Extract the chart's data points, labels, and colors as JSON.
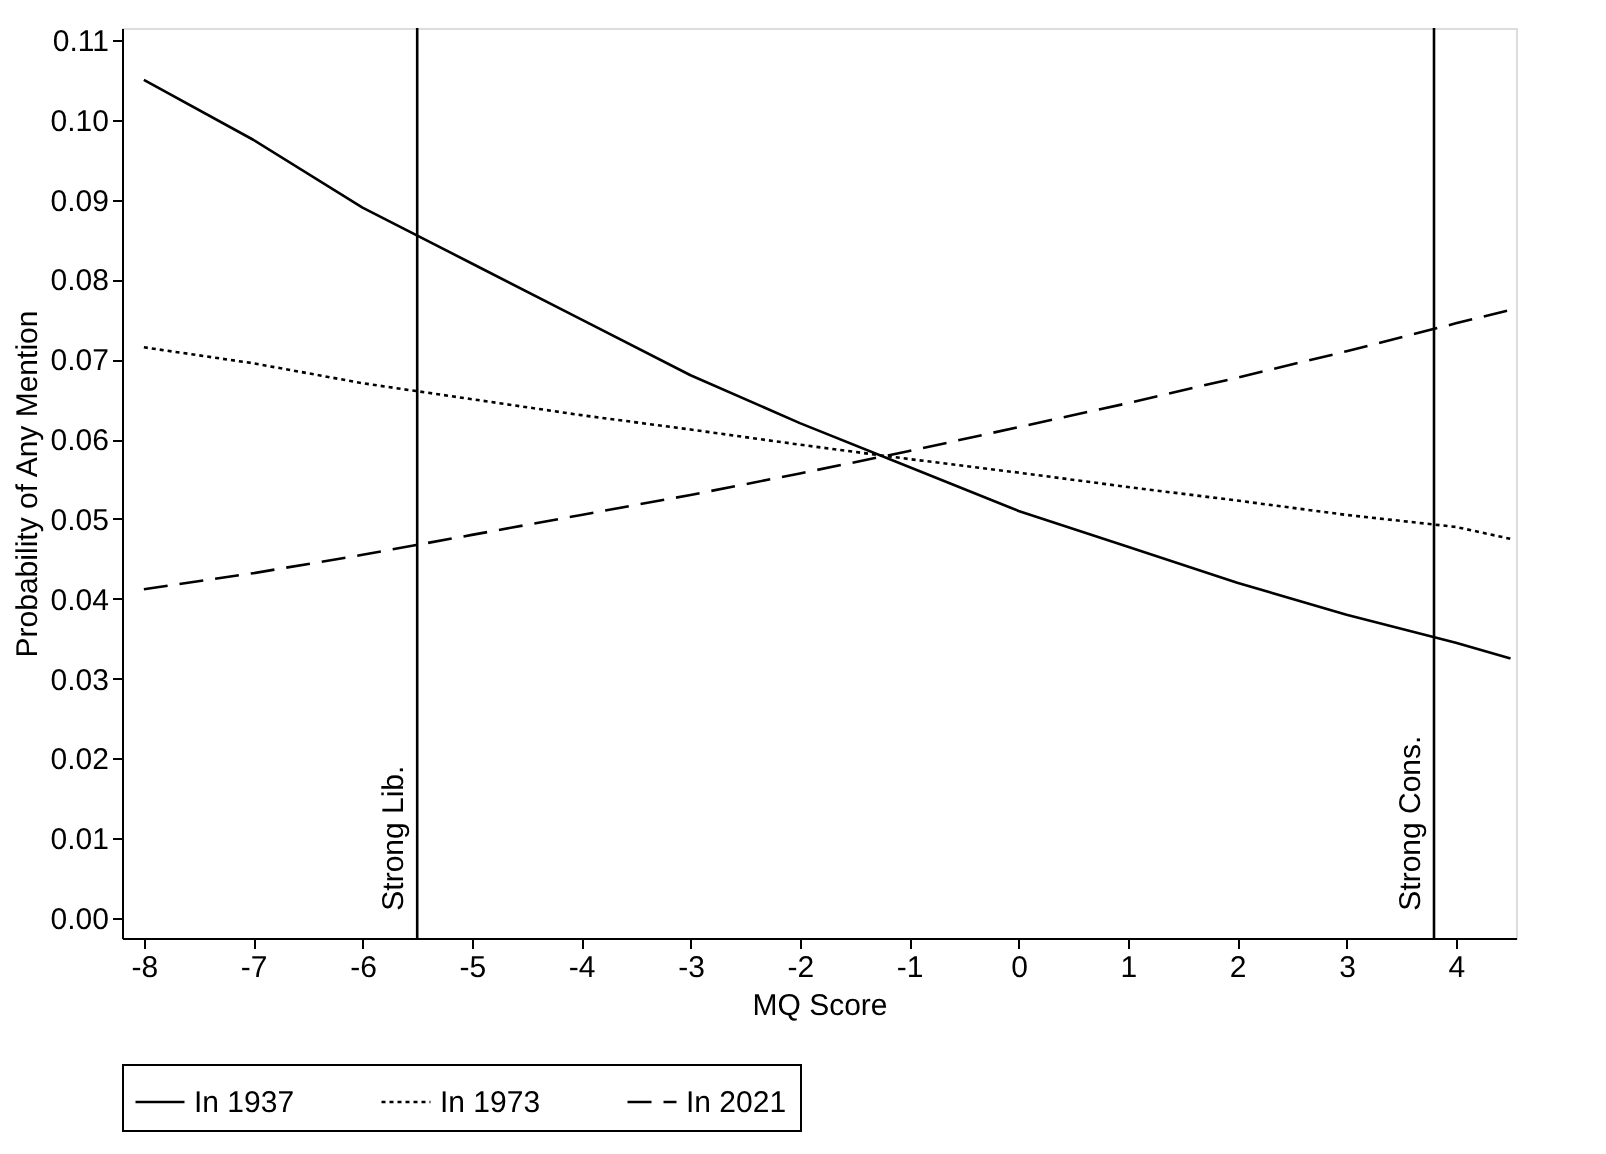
{
  "chart_data": {
    "type": "line",
    "xlabel": "MQ Score",
    "ylabel": "Probability of Any Mention",
    "x": [
      -8,
      -7,
      -6,
      -5,
      -4,
      -3,
      -2,
      -1,
      0,
      1,
      2,
      3,
      4,
      4.5
    ],
    "series": [
      {
        "name": "In 1937",
        "color": "#000000",
        "line_style": "solid",
        "values": [
          0.105,
          0.0975,
          0.089,
          0.082,
          0.075,
          0.068,
          0.062,
          0.0565,
          0.051,
          0.0465,
          0.042,
          0.038,
          0.0345,
          0.0325
        ]
      },
      {
        "name": "In 1973",
        "color": "#000000",
        "line_style": "dotted",
        "values": [
          0.0715,
          0.0695,
          0.067,
          0.065,
          0.063,
          0.0612,
          0.0593,
          0.0575,
          0.0558,
          0.054,
          0.0523,
          0.0505,
          0.049,
          0.0475
        ]
      },
      {
        "name": "In 2021",
        "color": "#000000",
        "line_style": "dashed",
        "values": [
          0.0412,
          0.0432,
          0.0455,
          0.048,
          0.0505,
          0.053,
          0.0557,
          0.0585,
          0.0615,
          0.0645,
          0.0677,
          0.071,
          0.0745,
          0.0762
        ]
      }
    ],
    "xlim": [
      -8.2,
      4.55
    ],
    "ylim": [
      -0.0025,
      0.1115
    ],
    "xticks": [
      -8,
      -7,
      -6,
      -5,
      -4,
      -3,
      -2,
      -1,
      0,
      1,
      2,
      3,
      4
    ],
    "yticks": [
      {
        "value": 0,
        "label": "0.00"
      },
      {
        "value": 0.01,
        "label": "0.01"
      },
      {
        "value": 0.02,
        "label": "0.02"
      },
      {
        "value": 0.03,
        "label": "0.03"
      },
      {
        "value": 0.04,
        "label": "0.04"
      },
      {
        "value": 0.05,
        "label": "0.05"
      },
      {
        "value": 0.06,
        "label": "0.06"
      },
      {
        "value": 0.07,
        "label": "0.07"
      },
      {
        "value": 0.08,
        "label": "0.08"
      },
      {
        "value": 0.09,
        "label": "0.09"
      },
      {
        "value": 0.1,
        "label": "0.10"
      },
      {
        "value": 0.11,
        "label": "0.11"
      }
    ],
    "ref_lines": [
      {
        "axis": "x",
        "value": -5.5,
        "label": "Strong Lib.",
        "color": "#000000"
      },
      {
        "axis": "x",
        "value": 3.8,
        "label": "Strong Cons.",
        "color": "#000000"
      }
    ],
    "grid": false,
    "legend": "bottom",
    "marker": "none"
  }
}
